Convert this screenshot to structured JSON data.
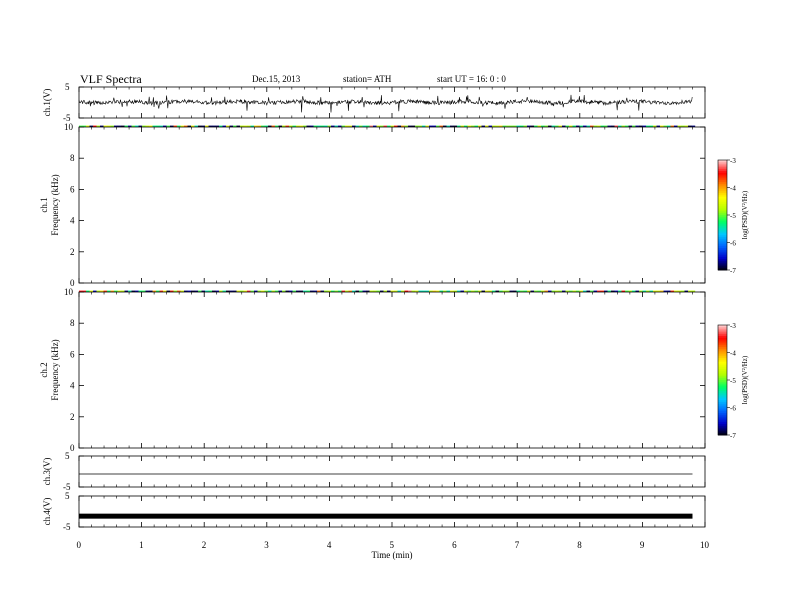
{
  "header": {
    "title": "VLF  Spectra",
    "date": "Dec.15, 2013",
    "station": "station= ATH",
    "start": "start  UT  =    16: 0  : 0"
  },
  "chart_data": [
    {
      "type": "line",
      "panel": "ch1",
      "ylabel": "ch.1(V)",
      "ylim": [
        -5,
        5
      ],
      "yticks": [
        "5",
        "-5"
      ],
      "note": "time series, values approx -3 to 2 V"
    },
    {
      "type": "heatmap",
      "panel": "spec1",
      "ylabel": "Frequency  (kHz)",
      "ylabel_channel": "ch.1",
      "ylim": [
        0,
        10
      ],
      "yticks": [
        "0",
        "2",
        "4",
        "6",
        "8",
        "10"
      ],
      "colorbar": {
        "label": "log(PSD)(V²/Hz)",
        "range": [
          -7,
          -3
        ],
        "ticks": [
          "-3",
          "-4",
          "-5",
          "-6",
          "-7"
        ]
      }
    },
    {
      "type": "heatmap",
      "panel": "spec2",
      "ylabel": "Frequency  (kHz)",
      "ylabel_channel": "ch.2",
      "ylim": [
        0,
        10
      ],
      "yticks": [
        "0",
        "2",
        "4",
        "6",
        "8",
        "10"
      ],
      "colorbar": {
        "label": "log(PSD)(V²/Hz)",
        "range": [
          -7,
          -3
        ],
        "ticks": [
          "-3",
          "-4",
          "-5",
          "-6",
          "-7"
        ]
      }
    },
    {
      "type": "line",
      "panel": "ch3",
      "ylabel": "ch.3(V)",
      "ylim": [
        -5,
        5
      ],
      "yticks": [
        "5",
        "-5"
      ],
      "note": "flat trace near -0.8 V"
    },
    {
      "type": "line",
      "panel": "ch4",
      "ylabel": "ch.4(V)",
      "ylim": [
        -5,
        5
      ],
      "yticks": [
        "5",
        "-5"
      ],
      "note": "thick flat trace near -1.5 V"
    }
  ],
  "xaxis": {
    "label": "Time  (min)",
    "range": [
      0,
      10
    ],
    "ticks": [
      "0",
      "1",
      "2",
      "3",
      "4",
      "5",
      "6",
      "7",
      "8",
      "9",
      "10"
    ]
  },
  "colorscale": [
    "#000000",
    "#0000c8",
    "#0064ff",
    "#00c8ff",
    "#00ff64",
    "#b4ff00",
    "#ffff00",
    "#ff8c00",
    "#ff0000",
    "#ffc8c8"
  ]
}
